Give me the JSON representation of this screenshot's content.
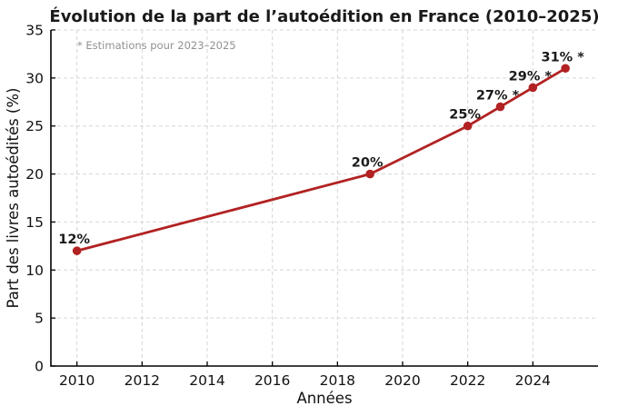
{
  "figure": {
    "background": "#ffffff"
  },
  "chart_data": {
    "type": "line",
    "title": "Évolution de la part de l’autoédition en France (2010–2025)",
    "xlabel": "Années",
    "ylabel": "Part des livres autoédités (%)",
    "annotation": "* Estimations pour 2023–2025",
    "points": [
      {
        "x": 2010,
        "y": 12,
        "label": "12%",
        "estimated": false
      },
      {
        "x": 2019,
        "y": 20,
        "label": "20%",
        "estimated": false
      },
      {
        "x": 2022,
        "y": 25,
        "label": "25%",
        "estimated": false
      },
      {
        "x": 2023,
        "y": 27,
        "label": "27% *",
        "estimated": true
      },
      {
        "x": 2024,
        "y": 29,
        "label": "29% *",
        "estimated": true
      },
      {
        "x": 2025,
        "y": 31,
        "label": "31% *",
        "estimated": true
      }
    ],
    "xticks": [
      2010,
      2012,
      2014,
      2016,
      2018,
      2020,
      2022,
      2024
    ],
    "yticks": [
      0,
      5,
      10,
      15,
      20,
      25,
      30,
      35
    ],
    "xlim": [
      2009.2,
      2026.0
    ],
    "ylim": [
      0,
      35
    ],
    "grid": true,
    "grid_style": "dashed",
    "legend": "none",
    "colors": {
      "line": "#b22222",
      "marker": "#b22222",
      "grid": "#d6d6d6",
      "axis": "#000000",
      "title_text": "#1a1a1a",
      "tick_text": "#111111",
      "annotation_text": "#919191",
      "data_label_text": "#1a1a1a",
      "background": "#ffffff"
    }
  }
}
